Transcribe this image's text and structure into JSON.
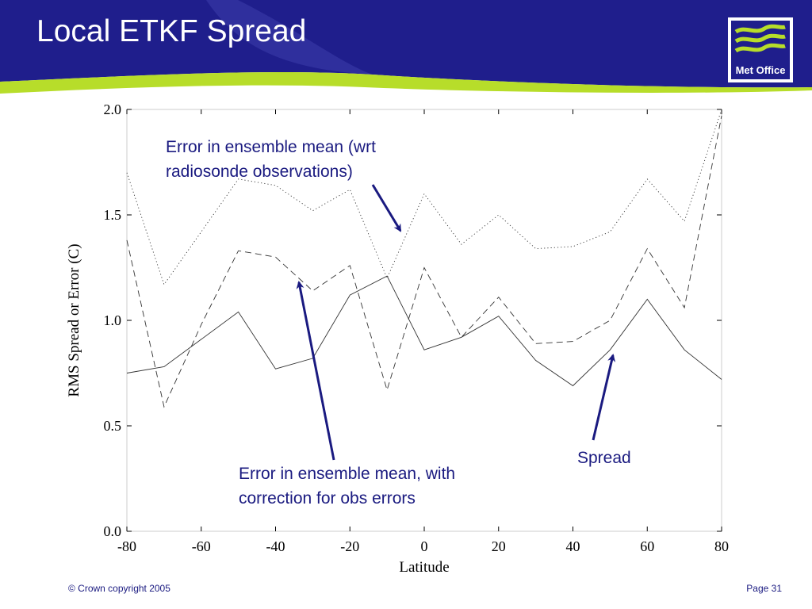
{
  "slide": {
    "title": "Local ETKF Spread",
    "logo_text": "Met Office",
    "footer_copyright": "© Crown copyright 2005",
    "footer_page": "Page 31"
  },
  "colors": {
    "header_blue": "#1f1e8c",
    "header_green": "#b7dd2a",
    "annotation_blue": "#1a1a80",
    "line_color": "#000000"
  },
  "annotations": {
    "error_mean_line1": "Error in ensemble mean (wrt",
    "error_mean_line2": "radiosonde observations)",
    "corrected_line1": "Error in ensemble mean, with",
    "corrected_line2": "correction for obs errors",
    "spread": "Spread"
  },
  "chart_data": {
    "type": "line",
    "xlabel": "Latitude",
    "ylabel": "RMS Spread or Error (C)",
    "xlim": [
      -80,
      80
    ],
    "ylim": [
      0.0,
      2.0
    ],
    "xticks": [
      -80,
      -60,
      -40,
      -20,
      0,
      20,
      40,
      60,
      80
    ],
    "yticks": [
      "0.0",
      "0.5",
      "1.0",
      "1.5",
      "2.0"
    ],
    "grid": false,
    "x": [
      -80,
      -70,
      -60,
      -50,
      -40,
      -30,
      -20,
      -10,
      0,
      10,
      20,
      30,
      40,
      50,
      60,
      70,
      80
    ],
    "series": [
      {
        "style": "dotted",
        "values": [
          1.7,
          1.17,
          1.42,
          1.67,
          1.64,
          1.52,
          1.62,
          1.2,
          1.6,
          1.36,
          1.5,
          1.34,
          1.35,
          1.42,
          1.67,
          1.47,
          2.02
        ]
      },
      {
        "style": "dashed",
        "values": [
          1.38,
          0.59,
          0.98,
          1.33,
          1.3,
          1.14,
          1.26,
          0.67,
          1.25,
          0.92,
          1.11,
          0.89,
          0.9,
          1.0,
          1.34,
          1.06,
          1.97
        ]
      },
      {
        "style": "solid",
        "values": [
          0.75,
          0.78,
          0.91,
          1.04,
          0.77,
          0.82,
          1.12,
          1.21,
          0.86,
          0.92,
          1.02,
          0.81,
          0.69,
          0.86,
          1.1,
          0.86,
          0.72
        ]
      }
    ]
  }
}
